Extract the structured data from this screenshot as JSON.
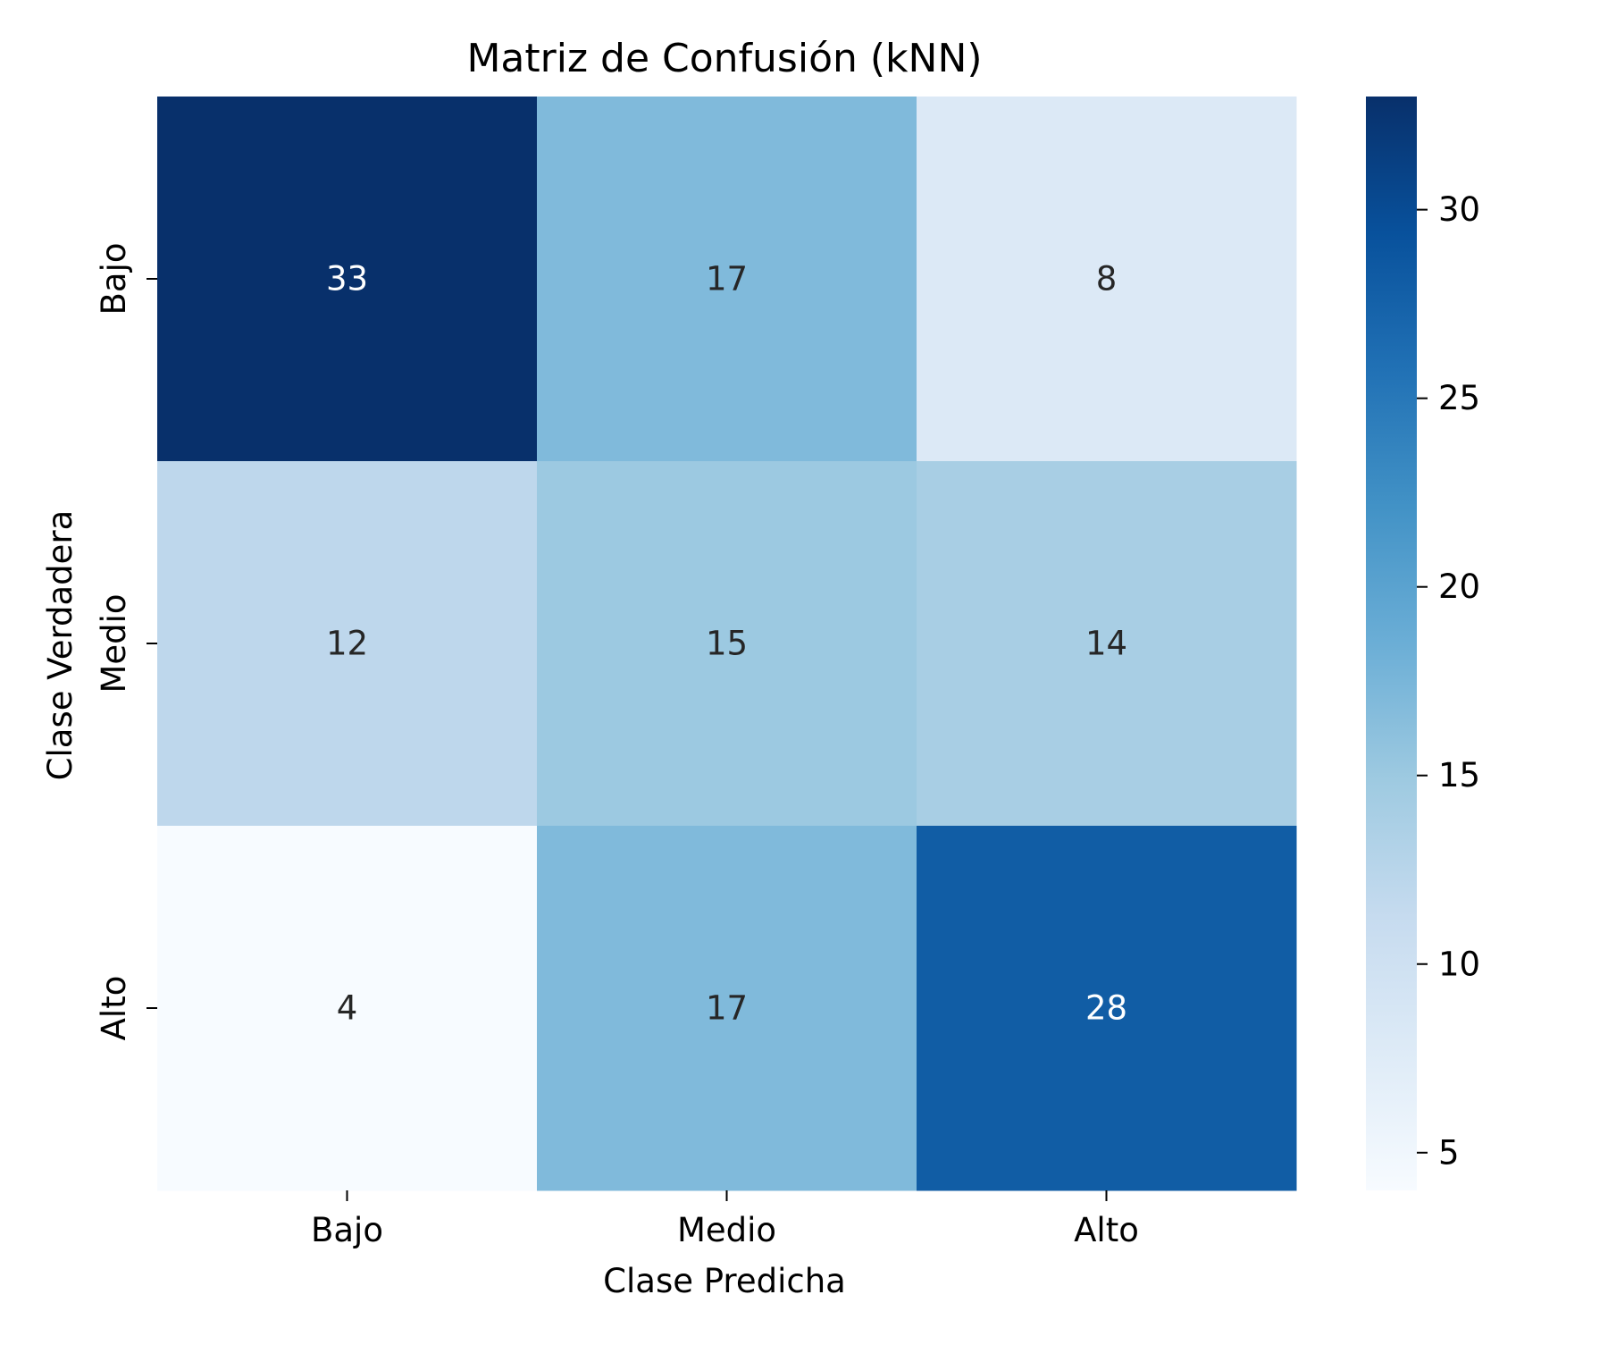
{
  "chart_data": {
    "type": "heatmap",
    "title": "Matriz de Confusión (kNN)",
    "xlabel": "Clase Predicha",
    "ylabel": "Clase Verdadera",
    "x_categories": [
      "Bajo",
      "Medio",
      "Alto"
    ],
    "y_categories": [
      "Bajo",
      "Medio",
      "Alto"
    ],
    "values": [
      [
        33,
        17,
        8
      ],
      [
        12,
        15,
        14
      ],
      [
        4,
        17,
        28
      ]
    ],
    "colormap": "Blues",
    "colorbar": {
      "min": 4,
      "max": 33,
      "ticks": [
        5,
        10,
        15,
        20,
        25,
        30
      ],
      "tick_labels": [
        "5",
        "10",
        "15",
        "20",
        "25",
        "30"
      ]
    },
    "annotations": true,
    "grid": false
  }
}
